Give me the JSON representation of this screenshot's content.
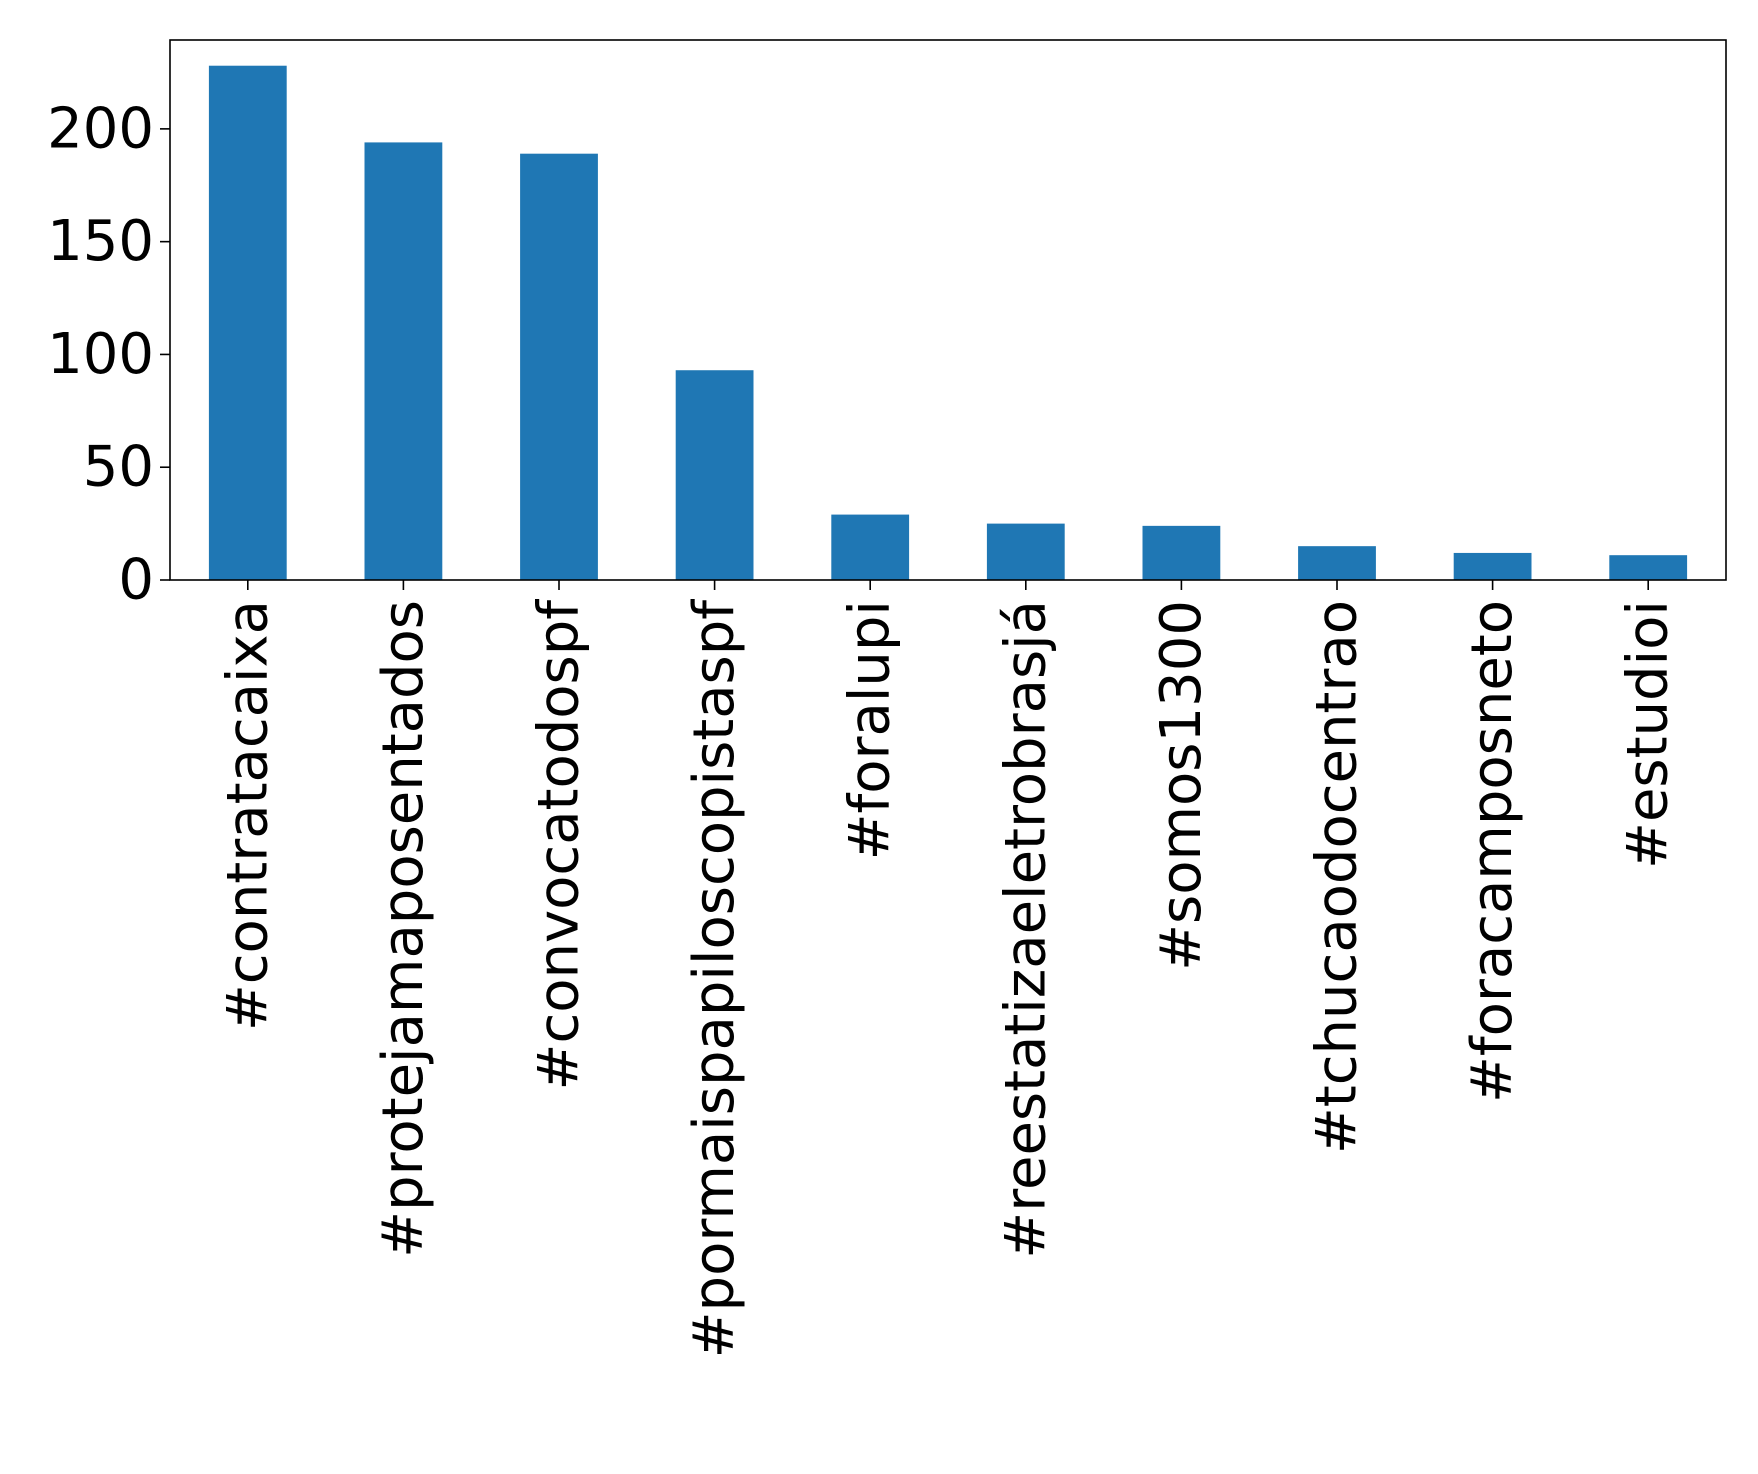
{
  "chart_data": {
    "type": "bar",
    "title": "",
    "xlabel": "",
    "ylabel": "",
    "categories": [
      "#contratacaixa",
      "#protejamaposentados",
      "#convocatodospf",
      "#pormaispapiloscopistaspf",
      "#foralupi",
      "#reestatizaeletrobrasjá",
      "#somos1300",
      "#tchucaodocentrao",
      "#foracamposneto",
      "#estudioi"
    ],
    "values": [
      228,
      194,
      189,
      93,
      29,
      25,
      24,
      15,
      12,
      11
    ],
    "ylim": [
      0,
      239.4
    ],
    "yticks": [
      0,
      50,
      100,
      150,
      200
    ],
    "bar_color": "#1f77b4",
    "grid": false,
    "legend": "none"
  }
}
